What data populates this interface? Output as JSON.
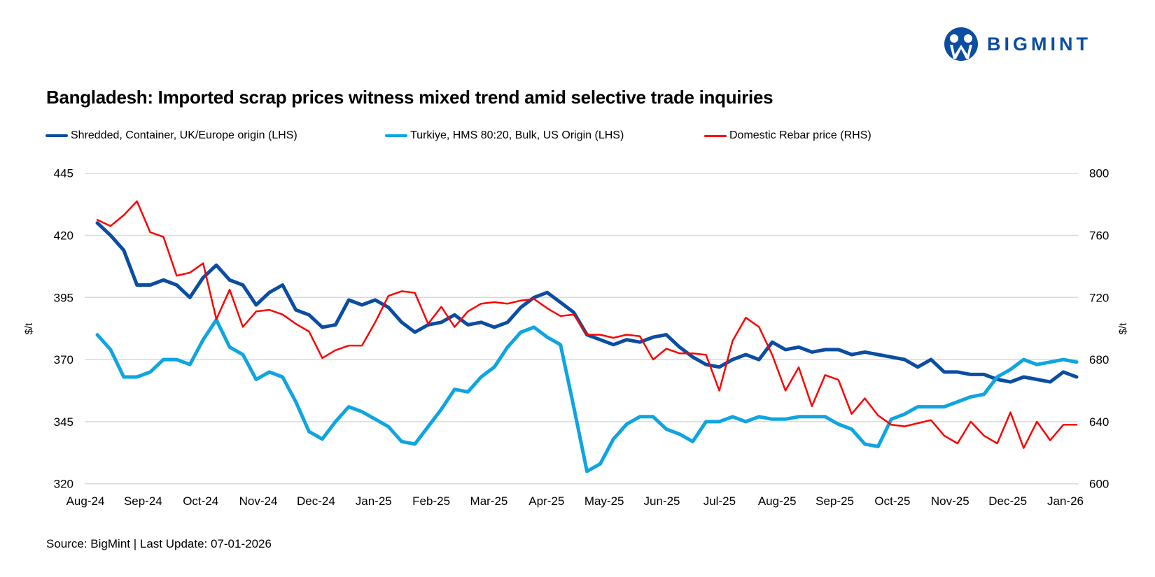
{
  "logo": {
    "text": "BIGMINT",
    "color": "#0b4da2"
  },
  "footer": {
    "source": "Source: BigMint | Last Update: 07-01-2026"
  },
  "chart_data": {
    "type": "line",
    "title": "Bangladesh: Imported scrap prices witness mixed trend amid selective trade inquiries",
    "x_tick_labels": [
      "Aug-24",
      "Sep-24",
      "Oct-24",
      "Nov-24",
      "Dec-24",
      "Jan-25",
      "Feb-25",
      "Mar-25",
      "Apr-25",
      "May-25",
      "Jun-25",
      "Jul-25",
      "Aug-25",
      "Sep-25",
      "Oct-25",
      "Nov-25",
      "Dec-25",
      "Jan-26"
    ],
    "frequency": "weekly",
    "y_left": {
      "label": "$/t",
      "range": [
        320,
        445
      ],
      "ticks": [
        320,
        345,
        370,
        395,
        420,
        445
      ]
    },
    "y_right": {
      "label": "$/t",
      "range": [
        600,
        800
      ],
      "ticks": [
        600,
        640,
        680,
        720,
        760,
        800
      ]
    },
    "grid": true,
    "legend_position": "top",
    "series": [
      {
        "name": "Shredded, Container, UK/Europe origin (LHS)",
        "axis": "left",
        "color": "#0b4da2",
        "values": [
          425,
          420,
          414,
          400,
          400,
          402,
          400,
          395,
          403,
          408,
          402,
          400,
          392,
          397,
          400,
          390,
          388,
          383,
          384,
          394,
          392,
          394,
          391,
          385,
          381,
          384,
          385,
          388,
          384,
          385,
          383,
          385,
          391,
          395,
          397,
          393,
          389,
          380,
          378,
          376,
          378,
          377,
          379,
          380,
          375,
          371,
          368,
          367,
          370,
          372,
          370,
          377,
          374,
          375,
          373,
          374,
          374,
          372,
          373,
          372,
          371,
          370,
          367,
          370,
          365,
          365,
          364,
          364,
          362,
          361,
          363,
          362,
          361,
          365,
          363
        ]
      },
      {
        "name": "Turkiye, HMS 80:20, Bulk, US Origin (LHS)",
        "axis": "left",
        "color": "#0ea5e0",
        "values": [
          380,
          374,
          363,
          363,
          365,
          370,
          370,
          368,
          378,
          386,
          375,
          372,
          362,
          365,
          363,
          353,
          341,
          338,
          345,
          351,
          349,
          346,
          343,
          337,
          336,
          343,
          350,
          358,
          357,
          363,
          367,
          375,
          381,
          383,
          379,
          376,
          351,
          325,
          328,
          338,
          344,
          347,
          347,
          342,
          340,
          337,
          345,
          345,
          347,
          345,
          347,
          346,
          346,
          347,
          347,
          347,
          344,
          342,
          336,
          335,
          346,
          348,
          351,
          351,
          351,
          353,
          355,
          356,
          363,
          366,
          370,
          368,
          369,
          370,
          369
        ]
      },
      {
        "name": "Domestic Rebar price (RHS)",
        "axis": "right",
        "color": "#ff0000",
        "values": [
          770,
          766,
          773,
          782,
          762,
          759,
          734,
          736,
          742,
          706,
          725,
          701,
          711,
          712,
          709,
          703,
          698,
          681,
          686,
          689,
          689,
          704,
          721,
          724,
          723,
          703,
          714,
          701,
          711,
          716,
          717,
          716,
          718,
          719,
          713,
          708,
          709,
          696,
          696,
          694,
          696,
          695,
          680,
          687,
          684,
          684,
          683,
          660,
          692,
          707,
          701,
          683,
          660,
          675,
          650,
          670,
          667,
          645,
          655,
          644,
          638,
          637,
          639,
          641,
          631,
          626,
          640,
          631,
          626,
          646,
          623,
          640,
          628,
          638,
          638
        ]
      }
    ]
  }
}
